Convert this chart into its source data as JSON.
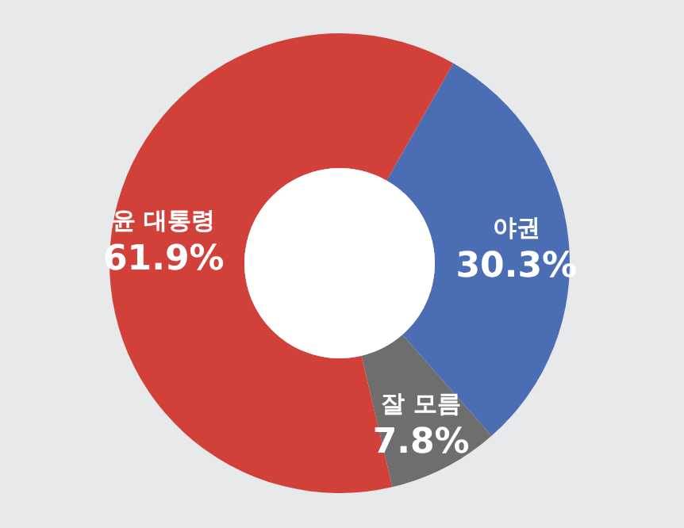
{
  "chart_data": {
    "type": "donut",
    "categories": [
      "야권",
      "잘 모름",
      "윤 대통령"
    ],
    "values": [
      30.3,
      7.8,
      61.9
    ],
    "colors": [
      "#4a6db3",
      "#6e6e6e",
      "#d1413a"
    ],
    "value_labels": [
      "30.3%",
      "7.8%",
      "61.9%"
    ],
    "legend": false
  }
}
